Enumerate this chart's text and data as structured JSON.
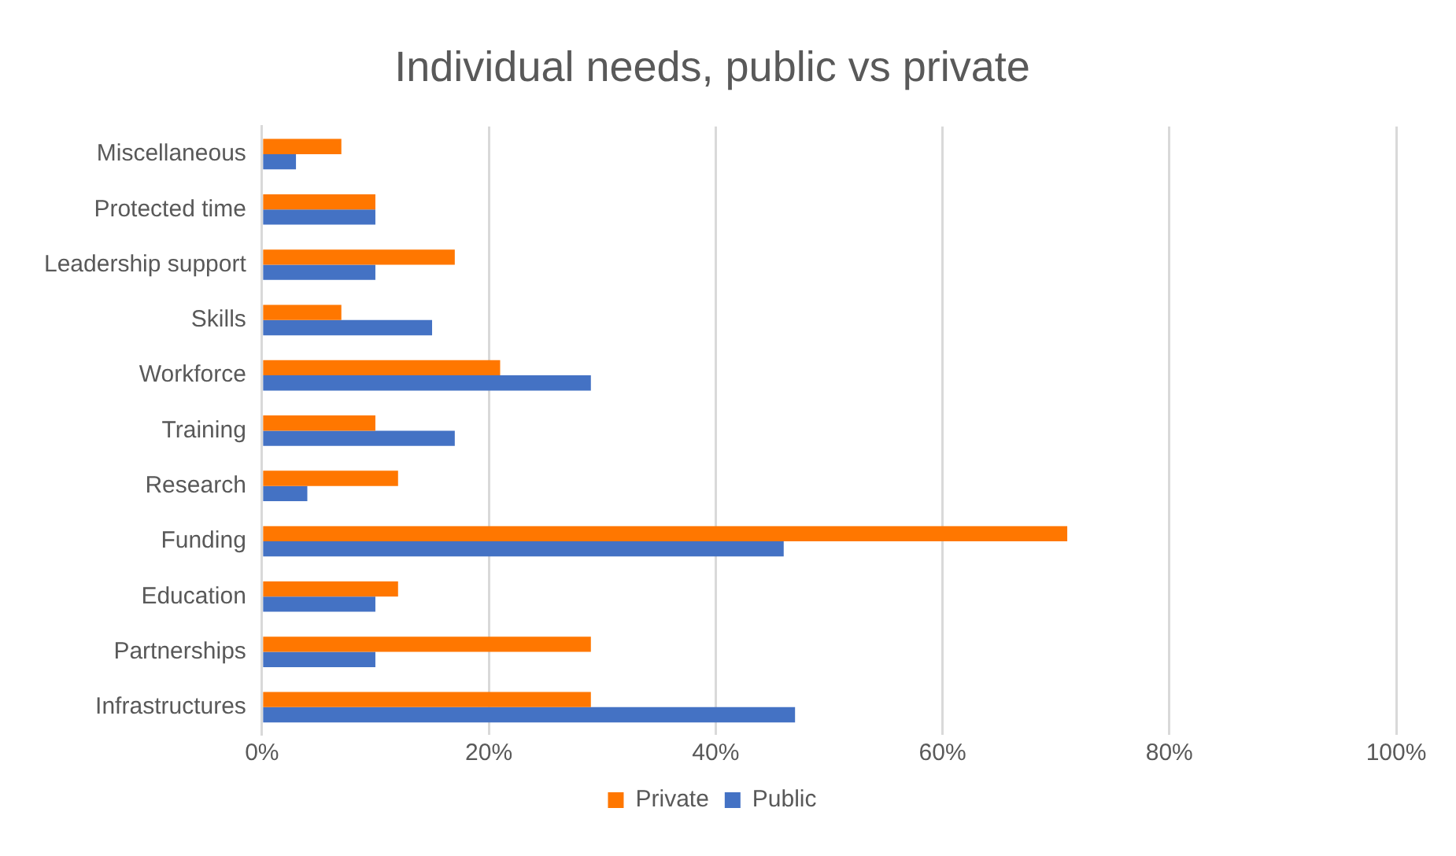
{
  "chart_data": {
    "type": "bar",
    "orientation": "horizontal",
    "title": "Individual needs, public vs private",
    "categories": [
      "Miscellaneous",
      "Protected time",
      "Leadership support",
      "Skills",
      "Workforce",
      "Training",
      "Research",
      "Funding",
      "Education",
      "Partnerships",
      "Infrastructures"
    ],
    "series": [
      {
        "name": "Private",
        "color": "#ff7700",
        "values": [
          7,
          10,
          17,
          7,
          21,
          10,
          12,
          71,
          12,
          29,
          29
        ]
      },
      {
        "name": "Public",
        "color": "#4472c4",
        "values": [
          3,
          10,
          10,
          15,
          29,
          17,
          4,
          46,
          10,
          10,
          47
        ]
      }
    ],
    "xlim": [
      0,
      100
    ],
    "xticks": [
      {
        "value": 0,
        "label": "0%"
      },
      {
        "value": 20,
        "label": "20%"
      },
      {
        "value": 40,
        "label": "40%"
      },
      {
        "value": 60,
        "label": "60%"
      },
      {
        "value": 80,
        "label": "80%"
      },
      {
        "value": 100,
        "label": "100%"
      }
    ],
    "grid": "x",
    "legend": "bottom"
  }
}
